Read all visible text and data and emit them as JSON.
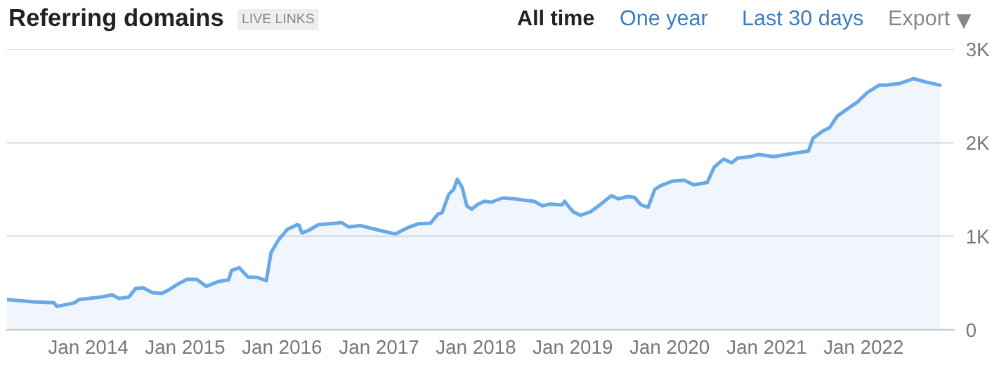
{
  "chart_data": {
    "type": "area",
    "title": "Referring domains",
    "subtitle": "LIVE LINKS",
    "annotations": [
      "All time",
      "One year",
      "Last 30 days",
      "Export"
    ],
    "x": [
      "2013-03-01",
      "2013-06-07",
      "2013-08-25",
      "2013-09-05",
      "2013-11-10",
      "2013-11-28",
      "2014-02-17",
      "2014-04-01",
      "2014-04-27",
      "2014-06-03",
      "2014-06-28",
      "2014-07-27",
      "2014-08-29",
      "2014-10-05",
      "2014-10-30",
      "2014-12-05",
      "2015-01-08",
      "2015-02-14",
      "2015-03-22",
      "2015-05-05",
      "2015-06-14",
      "2015-06-25",
      "2015-07-24",
      "2015-08-26",
      "2015-10-01",
      "2015-11-03",
      "2015-11-21",
      "2015-12-20",
      "2016-01-22",
      "2016-02-28",
      "2016-03-06",
      "2016-03-17",
      "2016-04-12",
      "2016-05-18",
      "2016-08-14",
      "2016-09-09",
      "2016-10-23",
      "2017-01-01",
      "2017-03-04",
      "2017-04-17",
      "2017-05-31",
      "2017-07-14",
      "2017-08-12",
      "2017-08-26",
      "2017-09-21",
      "2017-10-09",
      "2017-10-23",
      "2017-11-10",
      "2017-11-28",
      "2017-12-16",
      "2018-01-08",
      "2018-02-02",
      "2018-02-28",
      "2018-04-12",
      "2018-05-26",
      "2018-07-02",
      "2018-08-08",
      "2018-09-09",
      "2018-10-08",
      "2018-11-21",
      "2018-12-02",
      "2018-12-17",
      "2019-01-04",
      "2019-01-30",
      "2019-03-08",
      "2019-04-13",
      "2019-05-27",
      "2019-06-21",
      "2019-07-27",
      "2019-08-22",
      "2019-09-16",
      "2019-10-12",
      "2019-11-06",
      "2019-11-28",
      "2020-01-12",
      "2020-02-25",
      "2020-04-01",
      "2020-05-22",
      "2020-06-17",
      "2020-07-23",
      "2020-08-22",
      "2020-09-13",
      "2020-10-30",
      "2020-12-02",
      "2021-01-27",
      "2021-03-18",
      "2021-06-07",
      "2021-06-25",
      "2021-07-31",
      "2021-08-26",
      "2021-09-24",
      "2021-11-03",
      "2021-12-09",
      "2022-01-15",
      "2022-02-28",
      "2022-03-26",
      "2022-05-19",
      "2022-07-09",
      "2022-08-22",
      "2022-10-16"
    ],
    "series": [
      {
        "color": "#68a9e6",
        "values": [
          325,
          300,
          290,
          250,
          290,
          325,
          350,
          375,
          335,
          350,
          440,
          450,
          400,
          390,
          425,
          490,
          540,
          540,
          465,
          515,
          535,
          635,
          665,
          565,
          560,
          525,
          825,
          965,
          1075,
          1125,
          1115,
          1035,
          1065,
          1125,
          1145,
          1100,
          1115,
          1065,
          1025,
          1090,
          1135,
          1140,
          1240,
          1250,
          1450,
          1500,
          1610,
          1525,
          1325,
          1290,
          1340,
          1375,
          1365,
          1410,
          1400,
          1385,
          1375,
          1325,
          1345,
          1335,
          1375,
          1315,
          1260,
          1225,
          1260,
          1335,
          1435,
          1400,
          1425,
          1415,
          1335,
          1310,
          1500,
          1540,
          1590,
          1600,
          1550,
          1575,
          1740,
          1825,
          1785,
          1835,
          1850,
          1875,
          1850,
          1875,
          1910,
          2050,
          2125,
          2160,
          2285,
          2365,
          2435,
          2535,
          2615,
          2615,
          2635,
          2685,
          2650,
          2615
        ]
      }
    ],
    "xlim": [
      "2013-03-01",
      "2022-12-08"
    ],
    "xticks": [
      {
        "value": "2014-01-01",
        "label": "Jan 2014"
      },
      {
        "value": "2015-01-01",
        "label": "Jan 2015"
      },
      {
        "value": "2016-01-01",
        "label": "Jan 2016"
      },
      {
        "value": "2017-01-01",
        "label": "Jan 2017"
      },
      {
        "value": "2018-01-01",
        "label": "Jan 2018"
      },
      {
        "value": "2019-01-01",
        "label": "Jan 2019"
      },
      {
        "value": "2020-01-01",
        "label": "Jan 2020"
      },
      {
        "value": "2021-01-01",
        "label": "Jan 2021"
      },
      {
        "value": "2022-01-01",
        "label": "Jan 2022"
      }
    ],
    "ylim": [
      0,
      3000
    ],
    "yticks": [
      0,
      {
        "value": 1000,
        "label": "1K"
      },
      {
        "value": 2000,
        "label": "2K"
      },
      {
        "value": 3000,
        "label": "3K"
      }
    ],
    "grid": "y",
    "legend": false
  }
}
